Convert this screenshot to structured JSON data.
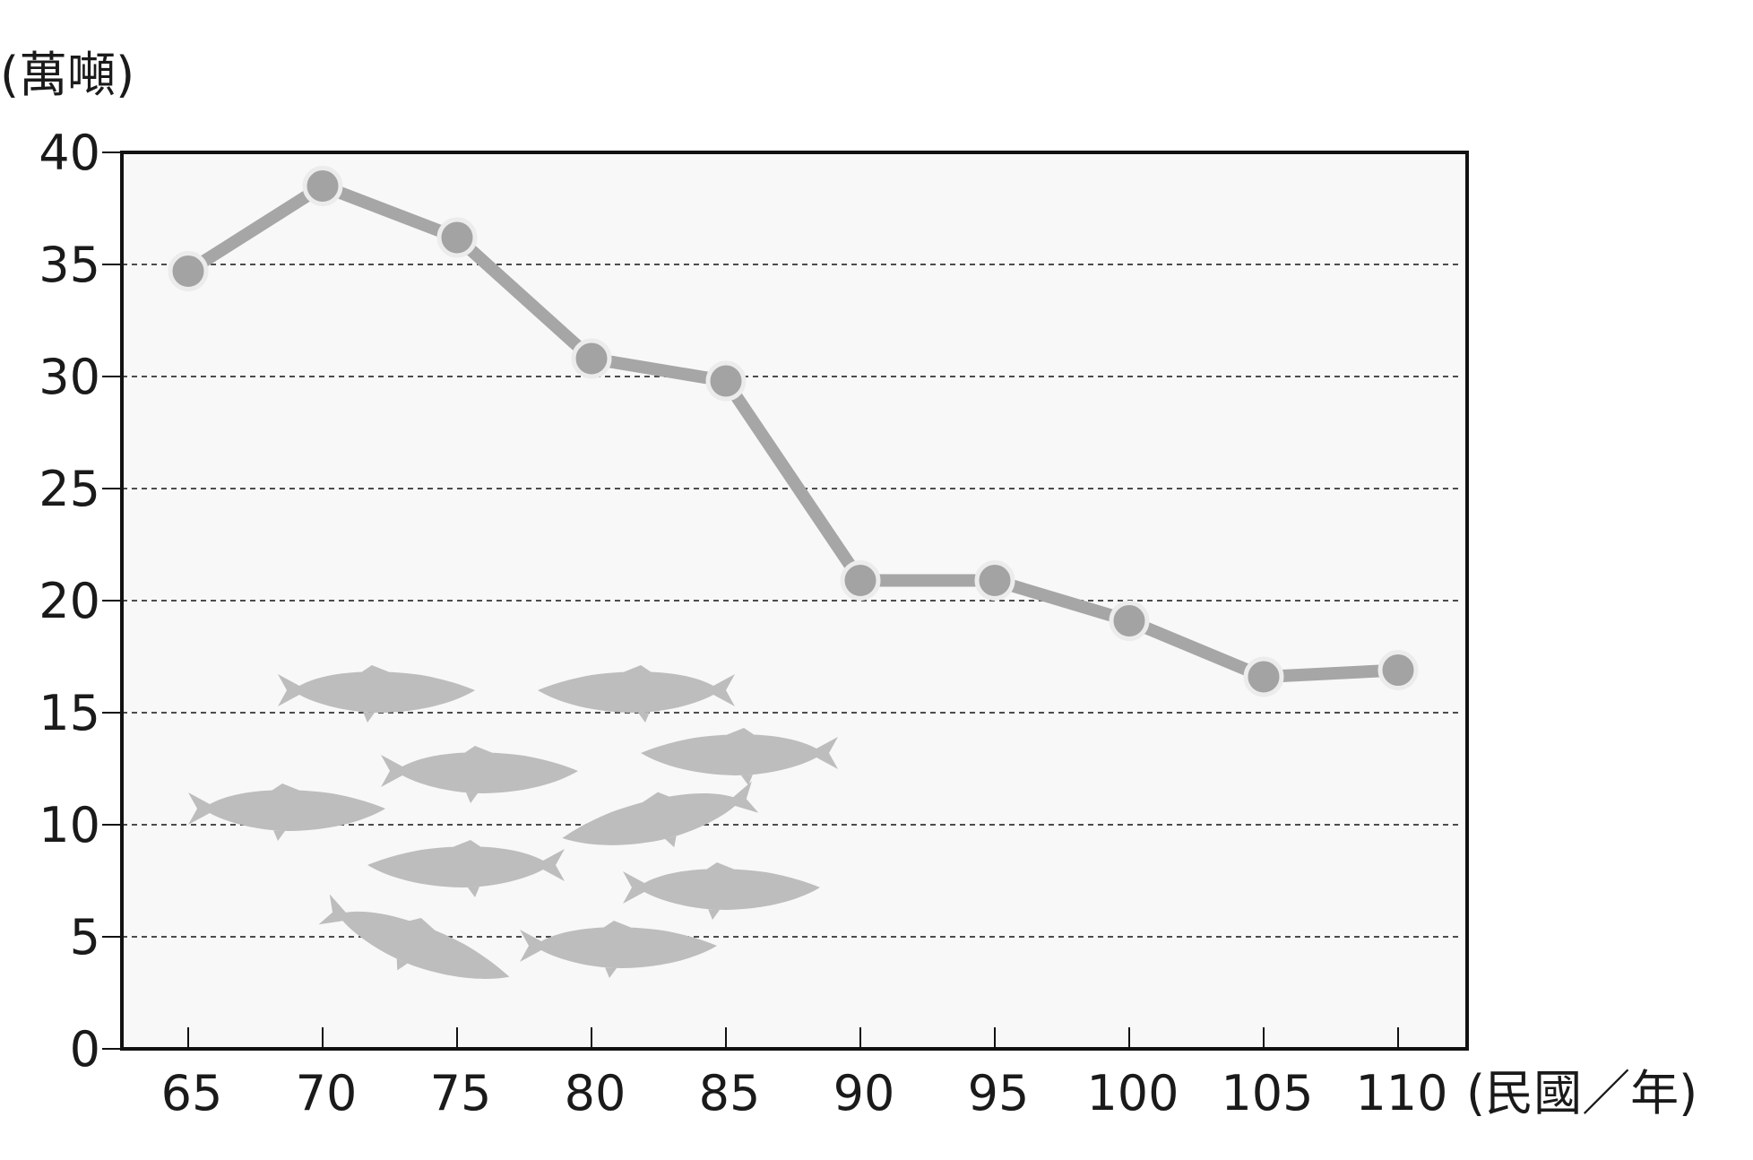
{
  "chart_data": {
    "type": "line",
    "ylabel": "(萬噸)",
    "xlabel": "(民國／年)",
    "x": [
      65,
      70,
      75,
      80,
      85,
      90,
      95,
      100,
      105,
      110
    ],
    "x_tick_labels": [
      "65",
      "70",
      "75",
      "80",
      "85",
      "90",
      "95",
      "100",
      "105",
      "110"
    ],
    "y_tick_labels": [
      "0",
      "5",
      "10",
      "15",
      "20",
      "25",
      "30",
      "35",
      "40"
    ],
    "y_ticks": [
      0,
      5,
      10,
      15,
      20,
      25,
      30,
      35,
      40
    ],
    "ylim": [
      0,
      40
    ],
    "series": [
      {
        "values": [
          34.7,
          38.5,
          36.2,
          30.8,
          29.8,
          20.9,
          20.9,
          19.1,
          16.6,
          16.9
        ]
      }
    ],
    "grid": "horizontal-dashed",
    "colors": {
      "line": "#a6a6a6",
      "marker_fill": "#a3a3a3",
      "marker_ring": "#ececec",
      "plot_background": "#f8f8f8",
      "fish": "#bdbdbd",
      "grid": "#333333"
    },
    "decoration": "fish-school-icon"
  }
}
